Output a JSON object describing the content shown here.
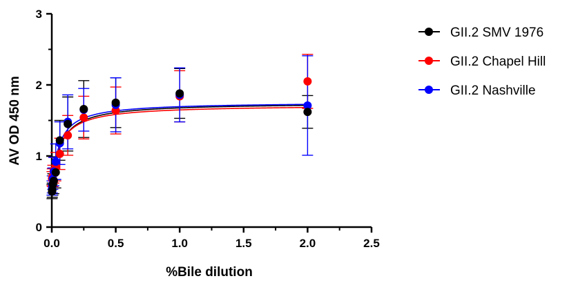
{
  "chart_data": {
    "type": "scatter",
    "title": "",
    "xlabel": "%Bile dilution",
    "ylabel": "AV OD 450 nm",
    "xlim": [
      0,
      2.5
    ],
    "ylim": [
      0,
      3
    ],
    "x_ticks": [
      "0.0",
      "0.5",
      "1.0",
      "1.5",
      "2.0",
      "2.5"
    ],
    "y_ticks": [
      "0",
      "1",
      "2",
      "3"
    ],
    "grid": false,
    "legend_position": "right",
    "series": [
      {
        "name": "GII.2 SMV 1976",
        "color": "#000000",
        "x": [
          0.002,
          0.004,
          0.008,
          0.016,
          0.031,
          0.063,
          0.125,
          0.25,
          0.5,
          1.0,
          2.0
        ],
        "y": [
          0.5,
          0.52,
          0.6,
          0.65,
          0.77,
          1.22,
          1.45,
          1.66,
          1.75,
          1.88,
          1.62
        ],
        "err": [
          0.1,
          0.1,
          0.15,
          0.18,
          0.22,
          0.28,
          0.38,
          0.4,
          0.35,
          0.35,
          0.23
        ],
        "fit": [
          0.45,
          1.75,
          0.06
        ]
      },
      {
        "name": "GII.2 Chapel Hill",
        "color": "#ff0000",
        "x": [
          0.002,
          0.004,
          0.008,
          0.016,
          0.031,
          0.063,
          0.125,
          0.25,
          0.5,
          1.0,
          2.0
        ],
        "y": [
          0.68,
          0.7,
          0.72,
          0.8,
          0.85,
          1.03,
          1.29,
          1.54,
          1.64,
          1.84,
          2.05
        ],
        "err": [
          0.1,
          0.12,
          0.15,
          0.18,
          0.2,
          0.22,
          0.28,
          0.3,
          0.33,
          0.36,
          0.38
        ],
        "fit": [
          0.62,
          1.72,
          0.07
        ]
      },
      {
        "name": "GII.2 Nashville",
        "color": "#0000ff",
        "x": [
          0.002,
          0.004,
          0.008,
          0.016,
          0.031,
          0.063,
          0.125,
          0.25,
          0.5,
          1.0,
          2.0
        ],
        "y": [
          0.55,
          0.6,
          0.68,
          0.78,
          0.92,
          1.18,
          1.48,
          1.65,
          1.72,
          1.86,
          1.71
        ],
        "err": [
          0.1,
          0.12,
          0.15,
          0.2,
          0.25,
          0.3,
          0.38,
          0.3,
          0.38,
          0.38,
          0.7
        ],
        "fit": [
          0.5,
          1.76,
          0.055
        ]
      }
    ]
  }
}
